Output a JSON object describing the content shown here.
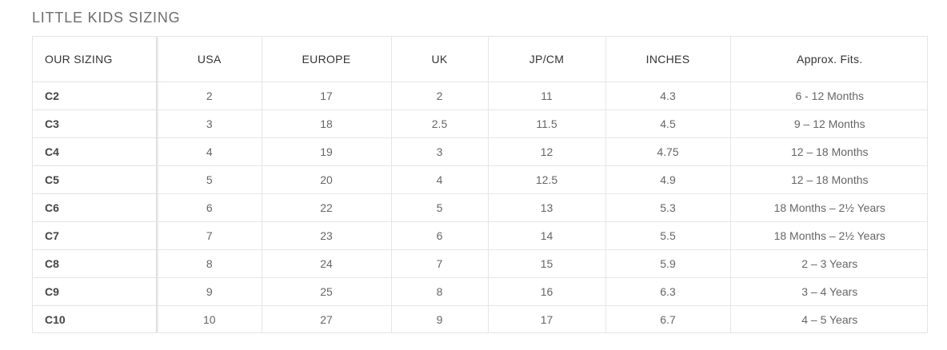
{
  "title": "LITTLE KIDS SIZING",
  "table": {
    "headers": [
      "OUR SIZING",
      "USA",
      "EUROPE",
      "UK",
      "JP/CM",
      "INCHES",
      "Approx. Fits."
    ],
    "rows": [
      [
        "C2",
        "2",
        "17",
        "2",
        "11",
        "4.3",
        "6 - 12 Months"
      ],
      [
        "C3",
        "3",
        "18",
        "2.5",
        "11.5",
        "4.5",
        "9 – 12 Months"
      ],
      [
        "C4",
        "4",
        "19",
        "3",
        "12",
        "4.75",
        "12 – 18 Months"
      ],
      [
        "C5",
        "5",
        "20",
        "4",
        "12.5",
        "4.9",
        "12 – 18 Months"
      ],
      [
        "C6",
        "6",
        "22",
        "5",
        "13",
        "5.3",
        "18 Months – 2½ Years"
      ],
      [
        "C7",
        "7",
        "23",
        "6",
        "14",
        "5.5",
        "18 Months – 2½ Years"
      ],
      [
        "C8",
        "8",
        "24",
        "7",
        "15",
        "5.9",
        "2 – 3 Years"
      ],
      [
        "C9",
        "9",
        "25",
        "8",
        "16",
        "6.3",
        "3 – 4 Years"
      ],
      [
        "C10",
        "10",
        "27",
        "9",
        "17",
        "6.7",
        "4 – 5 Years"
      ]
    ]
  }
}
